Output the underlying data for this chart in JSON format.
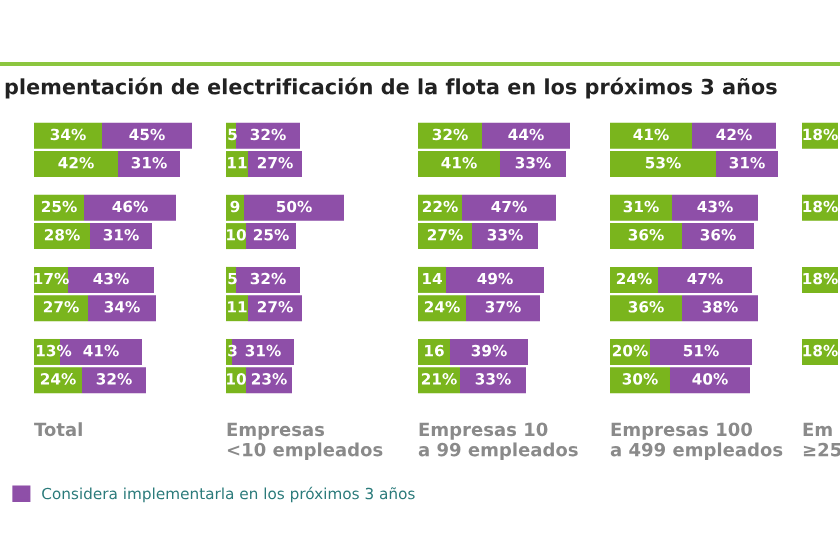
{
  "chart_data": [
    {
      "type": "bar",
      "orientation": "horizontal",
      "stacked": true,
      "title": "plementación de electrificación de la flota en los próximos 3 años",
      "xlabel": "Total",
      "categories": [
        null,
        null,
        null,
        null,
        null,
        null,
        null,
        null
      ],
      "legend": "bottom",
      "series": [
        {
          "color": "#7ab51d",
          "values": [
            34,
            42,
            25,
            28,
            17,
            27,
            13,
            24
          ],
          "value_labels": [
            "34%",
            "42%",
            "25%",
            "28%",
            "17%",
            "27%",
            "13%",
            "24%"
          ]
        },
        {
          "name": "Considera implementarla en los próximos 3 años",
          "color": "#8e4fa8",
          "values": [
            45,
            31,
            46,
            31,
            43,
            34,
            41,
            32
          ],
          "value_labels": [
            "45%",
            "31%",
            "46%",
            "31%",
            "43%",
            "34%",
            "41%",
            "32%"
          ]
        }
      ]
    },
    {
      "type": "bar",
      "orientation": "horizontal",
      "stacked": true,
      "xlabel": "Empresas\n<10 empleados",
      "categories": [
        null,
        null,
        null,
        null,
        null,
        null,
        null,
        null
      ],
      "series": [
        {
          "color": "#7ab51d",
          "values": [
            5,
            11,
            9,
            10,
            5,
            11,
            3,
            10
          ],
          "value_labels": [
            "5",
            "11",
            "9",
            "10",
            "5",
            "11",
            "3",
            "10"
          ]
        },
        {
          "color": "#8e4fa8",
          "values": [
            32,
            27,
            50,
            25,
            32,
            27,
            31,
            23
          ],
          "value_labels": [
            "32%",
            "27%",
            "50%",
            "25%",
            "32%",
            "27%",
            "31%",
            "23%"
          ]
        }
      ]
    },
    {
      "type": "bar",
      "orientation": "horizontal",
      "stacked": true,
      "xlabel": "Empresas 10\na 99 empleados",
      "categories": [
        null,
        null,
        null,
        null,
        null,
        null,
        null,
        null
      ],
      "series": [
        {
          "color": "#7ab51d",
          "values": [
            32,
            41,
            22,
            27,
            14,
            24,
            16,
            21
          ],
          "value_labels": [
            "32%",
            "41%",
            "22%",
            "27%",
            "14",
            "24%",
            "16",
            "21%"
          ]
        },
        {
          "color": "#8e4fa8",
          "values": [
            44,
            33,
            47,
            33,
            49,
            37,
            39,
            33
          ],
          "value_labels": [
            "44%",
            "33%",
            "47%",
            "33%",
            "49%",
            "37%",
            "39%",
            "33%"
          ]
        }
      ]
    },
    {
      "type": "bar",
      "orientation": "horizontal",
      "stacked": true,
      "xlabel": "Empresas 100\na 499 empleados",
      "categories": [
        null,
        null,
        null,
        null,
        null,
        null,
        null,
        null
      ],
      "series": [
        {
          "color": "#7ab51d",
          "values": [
            41,
            53,
            31,
            36,
            24,
            36,
            20,
            30
          ],
          "value_labels": [
            "41%",
            "53%",
            "31%",
            "36%",
            "24%",
            "36%",
            "20%",
            "30%"
          ]
        },
        {
          "color": "#8e4fa8",
          "values": [
            42,
            31,
            43,
            36,
            47,
            38,
            51,
            40
          ],
          "value_labels": [
            "42%",
            "31%",
            "43%",
            "36%",
            "47%",
            "38%",
            "51%",
            "40%"
          ]
        }
      ]
    },
    {
      "type": "bar",
      "orientation": "horizontal",
      "stacked": true,
      "xlabel": "Em\n≥25",
      "categories": [
        null,
        null,
        null,
        null,
        null,
        null,
        null,
        null
      ],
      "series": [
        {
          "color": "#7ab51d",
          "values": [
            18,
            null,
            18,
            null,
            18,
            null,
            18,
            null
          ],
          "value_labels": [
            "18%",
            null,
            "18%",
            null,
            "18%",
            null,
            "18%",
            null
          ]
        },
        {
          "color": "#8e4fa8",
          "values": [
            null,
            null,
            null,
            null,
            null,
            null,
            null,
            null
          ]
        }
      ]
    }
  ]
}
